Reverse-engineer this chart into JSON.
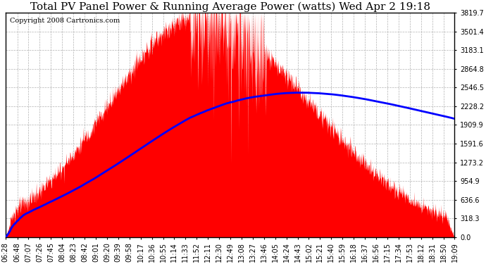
{
  "title": "Total PV Panel Power & Running Average Power (watts) Wed Apr 2 19:18",
  "copyright": "Copyright 2008 Cartronics.com",
  "yticks": [
    0.0,
    318.3,
    636.6,
    954.9,
    1273.2,
    1591.6,
    1909.9,
    2228.2,
    2546.5,
    2864.8,
    3183.1,
    3501.4,
    3819.7
  ],
  "ymax": 3819.7,
  "ymin": 0.0,
  "fill_color": "#FF0000",
  "line_color": "#0000FF",
  "background_color": "#FFFFFF",
  "grid_color": "#AAAAAA",
  "title_fontsize": 11,
  "copyright_fontsize": 7,
  "tick_label_fontsize": 7,
  "xtick_labels": [
    "06:28",
    "06:48",
    "07:07",
    "07:26",
    "07:45",
    "08:04",
    "08:23",
    "08:42",
    "09:01",
    "09:20",
    "09:39",
    "09:58",
    "10:17",
    "10:36",
    "10:55",
    "11:14",
    "11:33",
    "11:52",
    "12:11",
    "12:30",
    "12:49",
    "13:08",
    "13:27",
    "13:46",
    "14:05",
    "14:24",
    "14:43",
    "15:02",
    "15:21",
    "15:40",
    "15:59",
    "16:18",
    "16:37",
    "16:56",
    "17:15",
    "17:34",
    "17:53",
    "18:12",
    "18:31",
    "18:50",
    "19:09"
  ]
}
